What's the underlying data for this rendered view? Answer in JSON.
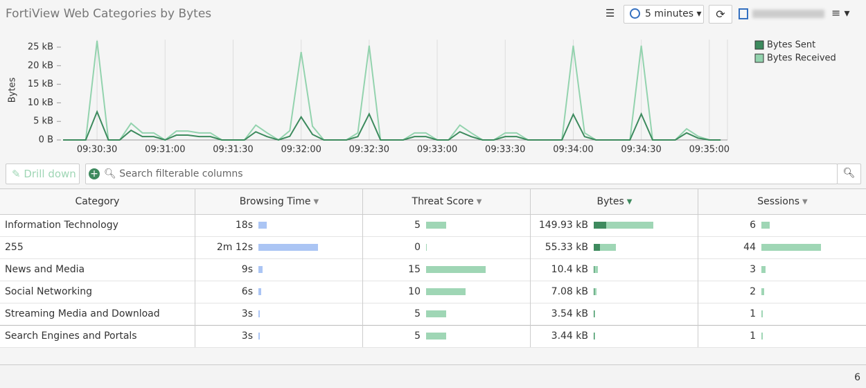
{
  "header": {
    "title": "FortiView Web Categories by Bytes",
    "time_range": "5 minutes"
  },
  "chart_data": {
    "type": "line",
    "ylabel": "Bytes",
    "x": [
      34215,
      34220,
      34225,
      34230,
      34235,
      34240,
      34245,
      34250,
      34255,
      34260,
      34265,
      34270,
      34275,
      34280,
      34285,
      34290,
      34295,
      34300,
      34305,
      34310,
      34315,
      34320,
      34325,
      34330,
      34335,
      34340,
      34345,
      34350,
      34355,
      34360,
      34365,
      34370,
      34375,
      34380,
      34385,
      34390,
      34395,
      34400,
      34405,
      34410,
      34415,
      34420,
      34425,
      34430,
      34435,
      34440,
      34445,
      34450,
      34455,
      34460,
      34465,
      34470,
      34475,
      34480,
      34485,
      34490,
      34495,
      34500,
      34505
    ],
    "series": [
      {
        "name": "Bytes Sent",
        "color": "#3c8a5d",
        "values": [
          0,
          0,
          0,
          7.6,
          0,
          0,
          2.6,
          0.9,
          0.9,
          0,
          1.3,
          1.3,
          0.9,
          0.9,
          0,
          0,
          0,
          2.2,
          0.9,
          0,
          1.0,
          6.2,
          1.5,
          0,
          0,
          0,
          0.9,
          7.0,
          0,
          0,
          0,
          0.9,
          0.9,
          0,
          0,
          2.2,
          0.9,
          0,
          0,
          0.9,
          0.9,
          0,
          0,
          0,
          0,
          6.9,
          0.9,
          0,
          0,
          0,
          0,
          7.0,
          0,
          0,
          0,
          1.9,
          0.5,
          0,
          0
        ]
      },
      {
        "name": "Bytes Received",
        "color": "#93d3ae",
        "values": [
          0,
          0,
          0,
          26.7,
          0,
          0,
          4.5,
          1.9,
          1.9,
          0,
          2.4,
          2.4,
          1.9,
          1.9,
          0,
          0,
          0,
          4.0,
          1.9,
          0,
          2.5,
          23.7,
          3.7,
          0,
          0,
          0,
          1.9,
          25.4,
          0,
          0,
          0,
          1.9,
          1.9,
          0,
          0,
          4.0,
          1.9,
          0,
          0,
          1.9,
          1.9,
          0,
          0,
          0,
          0,
          25.4,
          1.9,
          0,
          0,
          0,
          0,
          25.4,
          0,
          0,
          0,
          3.0,
          1.0,
          0,
          0
        ]
      }
    ],
    "xlim": [
      34215,
      34508
    ],
    "xticks": [
      {
        "value": 34230,
        "label": "09:30:30"
      },
      {
        "value": 34260,
        "label": "09:31:00"
      },
      {
        "value": 34290,
        "label": "09:31:30"
      },
      {
        "value": 34320,
        "label": "09:32:00"
      },
      {
        "value": 34350,
        "label": "09:32:30"
      },
      {
        "value": 34380,
        "label": "09:33:00"
      },
      {
        "value": 34410,
        "label": "09:33:30"
      },
      {
        "value": 34440,
        "label": "09:34:00"
      },
      {
        "value": 34470,
        "label": "09:34:30"
      },
      {
        "value": 34500,
        "label": "09:35:00"
      }
    ],
    "ylim": [
      0,
      27
    ],
    "yticks": [
      {
        "value": 0,
        "label": "0 B"
      },
      {
        "value": 5,
        "label": "5 kB"
      },
      {
        "value": 10,
        "label": "10 kB"
      },
      {
        "value": 15,
        "label": "15 kB"
      },
      {
        "value": 20,
        "label": "20 kB"
      },
      {
        "value": 25,
        "label": "25 kB"
      }
    ],
    "grid": true,
    "legend": "top-right"
  },
  "toolbar": {
    "drill_down": "Drill down",
    "search_placeholder": "Search filterable columns"
  },
  "table": {
    "columns": [
      "Category",
      "Browsing Time",
      "Threat Score",
      "Bytes",
      "Sessions"
    ],
    "sort_column": 3,
    "time_bar_color": "#abc5f4",
    "bar_color": "#9fd6b5",
    "sent_color": "#3e8a5e",
    "rows": [
      {
        "category": "Information Technology",
        "browsing_time": {
          "value": 18,
          "label": "18s"
        },
        "threat_score": 5,
        "bytes": {
          "value": 149.93,
          "label": "149.93 kB"
        },
        "bytes_sent": 31.4,
        "sessions": 6
      },
      {
        "category": "255",
        "browsing_time": {
          "value": 132,
          "label": "2m 12s"
        },
        "threat_score": 0,
        "bytes": {
          "value": 55.33,
          "label": "55.33 kB"
        },
        "bytes_sent": 15.7,
        "sessions": 44
      },
      {
        "category": "News and Media",
        "browsing_time": {
          "value": 9,
          "label": "9s"
        },
        "threat_score": 15,
        "bytes": {
          "value": 10.4,
          "label": "10.4 kB"
        },
        "bytes_sent": 2.4,
        "sessions": 3
      },
      {
        "category": "Social Networking",
        "browsing_time": {
          "value": 6,
          "label": "6s"
        },
        "threat_score": 10,
        "bytes": {
          "value": 7.08,
          "label": "7.08 kB"
        },
        "bytes_sent": 1.6,
        "sessions": 2
      },
      {
        "category": "Streaming Media and Download",
        "browsing_time": {
          "value": 3,
          "label": "3s"
        },
        "threat_score": 5,
        "bytes": {
          "value": 3.54,
          "label": "3.54 kB"
        },
        "bytes_sent": 0.8,
        "sessions": 1
      },
      {
        "category": "Search Engines and Portals",
        "browsing_time": {
          "value": 3,
          "label": "3s"
        },
        "threat_score": 5,
        "bytes": {
          "value": 3.44,
          "label": "3.44 kB"
        },
        "bytes_sent": 0.8,
        "sessions": 1
      }
    ]
  },
  "footer": {
    "count": 6
  }
}
